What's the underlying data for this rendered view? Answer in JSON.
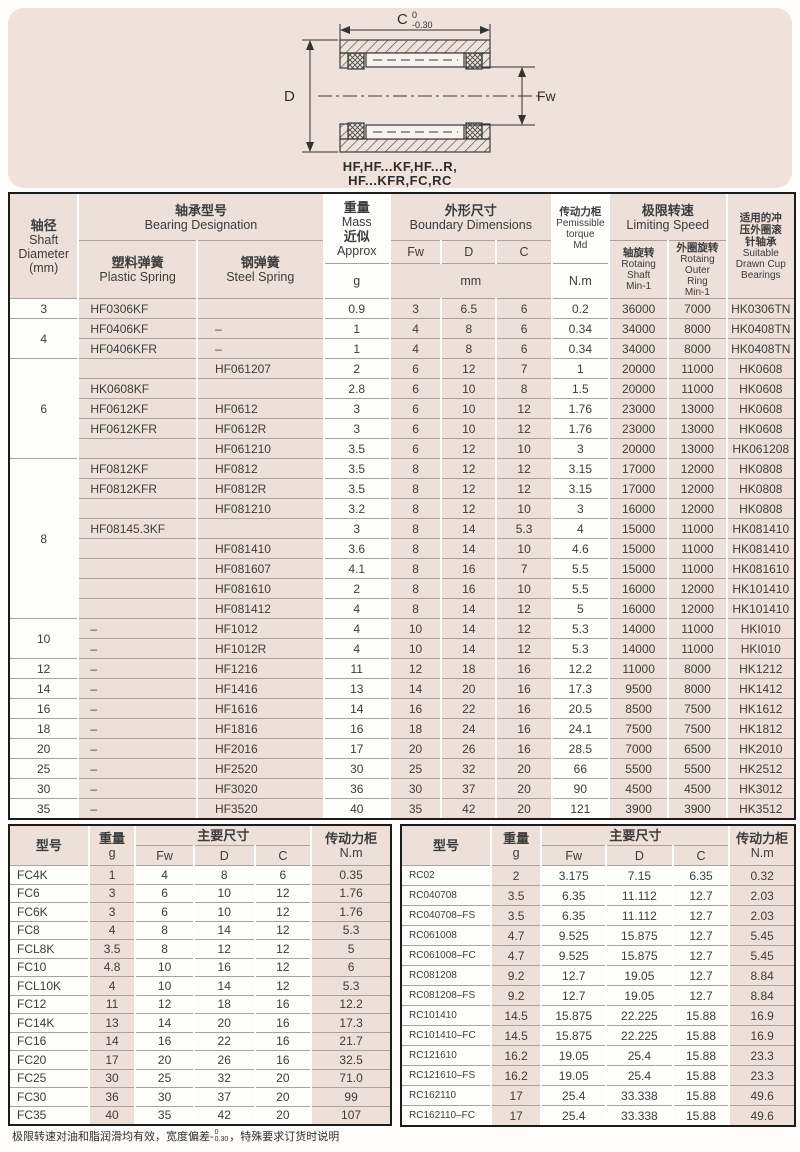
{
  "colors": {
    "panel_pink": "#eee2db",
    "cell_pink": "#ece0d9",
    "grid_line": "#aba29d",
    "outer_border": "#1c1c1c"
  },
  "diagram": {
    "dim_c_label": "C",
    "dim_c_tol_upper": "0",
    "dim_c_tol_lower": "-0.30",
    "dim_d_label": "D",
    "dim_fw_label": "Fw",
    "caption_line1": "HF,HF...KF,HF...R,",
    "caption_line2": "HF...KFR,FC,RC"
  },
  "main_table": {
    "header": {
      "shaft_cn": "轴径",
      "shaft_en1": "Shaft",
      "shaft_en2": "Diameter",
      "shaft_unit": "(mm)",
      "designation_cn": "轴承型号",
      "designation_en": "Bearing Designation",
      "plastic_cn": "塑料弹簧",
      "plastic_en": "Plastic Spring",
      "steel_cn": "钢弹簧",
      "steel_en": "Steel Spring",
      "mass_cn": "重量",
      "mass_en": "Mass",
      "mass_cn2": "近似",
      "mass_en2": "Approx",
      "mass_unit": "g",
      "bd_cn": "外形尺寸",
      "bd_en": "Boundary Dimensions",
      "col_fw": "Fw",
      "col_d": "D",
      "col_c": "C",
      "bd_unit": "mm",
      "torque_cn": "传动力柜",
      "torque_en1": "Pemissible",
      "torque_en2": "torque",
      "torque_en3": "Md",
      "torque_unit": "N.m",
      "speed_cn": "极限转速",
      "speed_en": "Limiting Speed",
      "ns_cn": "轴旋转",
      "ns_en1": "Rotaing",
      "ns_en2": "Shaft",
      "ns_en3": "Min-1",
      "nr_cn": "外圈旋转",
      "nr_en1": "Rotaing",
      "nr_en2": "Outer",
      "nr_en3": "Ring",
      "nr_en4": "Min-1",
      "suit_cn1": "适用的冲",
      "suit_cn2": "压外圈滚",
      "suit_cn3": "针轴承",
      "suit_en1": "Suitable",
      "suit_en2": "Drawn Cup",
      "suit_en3": "Bearings"
    },
    "rows": [
      {
        "shaft": "3",
        "span": 1,
        "plastic": "HF0306KF",
        "steel": "",
        "mass": "0.9",
        "fw": "3",
        "d": "6.5",
        "c": "6",
        "md": "0.2",
        "ns": "36000",
        "nr": "7000",
        "hk": "HK0306TN"
      },
      {
        "shaft": "4",
        "span": 2,
        "plastic": "HF0406KF",
        "steel": "–",
        "mass": "1",
        "fw": "4",
        "d": "8",
        "c": "6",
        "md": "0.34",
        "ns": "34000",
        "nr": "8000",
        "hk": "HK0408TN"
      },
      {
        "plastic": "HF0406KFR",
        "steel": "–",
        "mass": "1",
        "fw": "4",
        "d": "8",
        "c": "6",
        "md": "0.34",
        "ns": "34000",
        "nr": "8000",
        "hk": "HK0408TN"
      },
      {
        "shaft": "6",
        "span": 5,
        "plastic": "",
        "steel": "HF061207",
        "mass": "2",
        "fw": "6",
        "d": "12",
        "c": "7",
        "md": "1",
        "ns": "20000",
        "nr": "11000",
        "hk": "HK0608"
      },
      {
        "plastic": "HK0608KF",
        "steel": "",
        "mass": "2.8",
        "fw": "6",
        "d": "10",
        "c": "8",
        "md": "1.5",
        "ns": "20000",
        "nr": "11000",
        "hk": "HK0608"
      },
      {
        "plastic": "HF0612KF",
        "steel": "HF0612",
        "mass": "3",
        "fw": "6",
        "d": "10",
        "c": "12",
        "md": "1.76",
        "ns": "23000",
        "nr": "13000",
        "hk": "HK0608"
      },
      {
        "plastic": "HF0612KFR",
        "steel": "HF0612R",
        "mass": "3",
        "fw": "6",
        "d": "10",
        "c": "12",
        "md": "1.76",
        "ns": "23000",
        "nr": "13000",
        "hk": "HK0608"
      },
      {
        "plastic": "",
        "steel": "HF061210",
        "mass": "3.5",
        "fw": "6",
        "d": "12",
        "c": "10",
        "md": "3",
        "ns": "20000",
        "nr": "13000",
        "hk": "HK061208"
      },
      {
        "shaft": "8",
        "span": 8,
        "plastic": "HF0812KF",
        "steel": "HF0812",
        "mass": "3.5",
        "fw": "8",
        "d": "12",
        "c": "12",
        "md": "3.15",
        "ns": "17000",
        "nr": "12000",
        "hk": "HK0808"
      },
      {
        "plastic": "HF0812KFR",
        "steel": "HF0812R",
        "mass": "3.5",
        "fw": "8",
        "d": "12",
        "c": "12",
        "md": "3.15",
        "ns": "17000",
        "nr": "12000",
        "hk": "HK0808"
      },
      {
        "plastic": "",
        "steel": "HF081210",
        "mass": "3.2",
        "fw": "8",
        "d": "12",
        "c": "10",
        "md": "3",
        "ns": "16000",
        "nr": "12000",
        "hk": "HK0808"
      },
      {
        "plastic": "HF08145.3KF",
        "steel": "",
        "mass": "3",
        "fw": "8",
        "d": "14",
        "c": "5.3",
        "md": "4",
        "ns": "15000",
        "nr": "11000",
        "hk": "HK081410"
      },
      {
        "plastic": "",
        "steel": "HF081410",
        "mass": "3.6",
        "fw": "8",
        "d": "14",
        "c": "10",
        "md": "4.6",
        "ns": "15000",
        "nr": "11000",
        "hk": "HK081410"
      },
      {
        "plastic": "",
        "steel": "HF081607",
        "mass": "4.1",
        "fw": "8",
        "d": "16",
        "c": "7",
        "md": "5.5",
        "ns": "15000",
        "nr": "11000",
        "hk": "HK081610"
      },
      {
        "plastic": "",
        "steel": "HF081610",
        "mass": "2",
        "fw": "8",
        "d": "16",
        "c": "10",
        "md": "5.5",
        "ns": "16000",
        "nr": "12000",
        "hk": "HK101410"
      },
      {
        "plastic": "",
        "steel": "HF081412",
        "mass": "4",
        "fw": "8",
        "d": "14",
        "c": "12",
        "md": "5",
        "ns": "16000",
        "nr": "12000",
        "hk": "HK101410"
      },
      {
        "shaft": "10",
        "span": 2,
        "plastic": "–",
        "steel": "HF1012",
        "mass": "4",
        "fw": "10",
        "d": "14",
        "c": "12",
        "md": "5.3",
        "ns": "14000",
        "nr": "11000",
        "hk": "HKI010"
      },
      {
        "plastic": "–",
        "steel": "HF1012R",
        "mass": "4",
        "fw": "10",
        "d": "14",
        "c": "12",
        "md": "5.3",
        "ns": "14000",
        "nr": "11000",
        "hk": "HKI010"
      },
      {
        "shaft": "12",
        "span": 1,
        "plastic": "–",
        "steel": "HF1216",
        "mass": "11",
        "fw": "12",
        "d": "18",
        "c": "16",
        "md": "12.2",
        "ns": "11000",
        "nr": "8000",
        "hk": "HK1212"
      },
      {
        "shaft": "14",
        "span": 1,
        "plastic": "–",
        "steel": "HF1416",
        "mass": "13",
        "fw": "14",
        "d": "20",
        "c": "16",
        "md": "17.3",
        "ns": "9500",
        "nr": "8000",
        "hk": "HK1412"
      },
      {
        "shaft": "16",
        "span": 1,
        "plastic": "–",
        "steel": "HF1616",
        "mass": "14",
        "fw": "16",
        "d": "22",
        "c": "16",
        "md": "20.5",
        "ns": "8500",
        "nr": "7500",
        "hk": "HK1612"
      },
      {
        "shaft": "18",
        "span": 1,
        "plastic": "–",
        "steel": "HF1816",
        "mass": "16",
        "fw": "18",
        "d": "24",
        "c": "16",
        "md": "24.1",
        "ns": "7500",
        "nr": "7500",
        "hk": "HK1812"
      },
      {
        "shaft": "20",
        "span": 1,
        "plastic": "–",
        "steel": "HF2016",
        "mass": "17",
        "fw": "20",
        "d": "26",
        "c": "16",
        "md": "28.5",
        "ns": "7000",
        "nr": "6500",
        "hk": "HK2010"
      },
      {
        "shaft": "25",
        "span": 1,
        "plastic": "–",
        "steel": "HF2520",
        "mass": "30",
        "fw": "25",
        "d": "32",
        "c": "20",
        "md": "66",
        "ns": "5500",
        "nr": "5500",
        "hk": "HK2512"
      },
      {
        "shaft": "30",
        "span": 1,
        "plastic": "–",
        "steel": "HF3020",
        "mass": "36",
        "fw": "30",
        "d": "37",
        "c": "20",
        "md": "90",
        "ns": "4500",
        "nr": "4500",
        "hk": "HK3012"
      },
      {
        "shaft": "35",
        "span": 1,
        "plastic": "–",
        "steel": "HF3520",
        "mass": "40",
        "fw": "35",
        "d": "42",
        "c": "20",
        "md": "121",
        "ns": "3900",
        "nr": "3900",
        "hk": "HK3512"
      }
    ]
  },
  "fc_table": {
    "header": {
      "model": "型号",
      "weight_cn": "重量",
      "weight_unit": "g",
      "dims": "主要尺寸",
      "fw": "Fw",
      "d": "D",
      "c": "C",
      "torque_cn": "传动力柜",
      "torque_unit": "N.m"
    },
    "rows": [
      {
        "model": "FC4K",
        "g": "1",
        "fw": "4",
        "d": "8",
        "c": "6",
        "nm": "0.35"
      },
      {
        "model": "FC6",
        "g": "3",
        "fw": "6",
        "d": "10",
        "c": "12",
        "nm": "1.76"
      },
      {
        "model": "FC6K",
        "g": "3",
        "fw": "6",
        "d": "10",
        "c": "12",
        "nm": "1.76"
      },
      {
        "model": "FC8",
        "g": "4",
        "fw": "8",
        "d": "14",
        "c": "12",
        "nm": "5.3"
      },
      {
        "model": "FCL8K",
        "g": "3.5",
        "fw": "8",
        "d": "12",
        "c": "12",
        "nm": "5"
      },
      {
        "model": "FC10",
        "g": "4.8",
        "fw": "10",
        "d": "16",
        "c": "12",
        "nm": "6"
      },
      {
        "model": "FCL10K",
        "g": "4",
        "fw": "10",
        "d": "14",
        "c": "12",
        "nm": "5.3"
      },
      {
        "model": "FC12",
        "g": "11",
        "fw": "12",
        "d": "18",
        "c": "16",
        "nm": "12.2"
      },
      {
        "model": "FC14K",
        "g": "13",
        "fw": "14",
        "d": "20",
        "c": "16",
        "nm": "17.3"
      },
      {
        "model": "FC16",
        "g": "14",
        "fw": "16",
        "d": "22",
        "c": "16",
        "nm": "21.7"
      },
      {
        "model": "FC20",
        "g": "17",
        "fw": "20",
        "d": "26",
        "c": "16",
        "nm": "32.5"
      },
      {
        "model": "FC25",
        "g": "30",
        "fw": "25",
        "d": "32",
        "c": "20",
        "nm": "71.0"
      },
      {
        "model": "FC30",
        "g": "36",
        "fw": "30",
        "d": "37",
        "c": "20",
        "nm": "99"
      },
      {
        "model": "FC35",
        "g": "40",
        "fw": "35",
        "d": "42",
        "c": "20",
        "nm": "107"
      }
    ]
  },
  "rc_table": {
    "header": {
      "model": "型号",
      "weight_cn": "重量",
      "weight_unit": "g",
      "dims": "主要尺寸",
      "fw": "Fw",
      "d": "D",
      "c": "C",
      "torque_cn": "传动力柜",
      "torque_unit": "N.m"
    },
    "rows": [
      {
        "model": "RC02",
        "g": "2",
        "fw": "3.175",
        "d": "7.15",
        "c": "6.35",
        "nm": "0.32"
      },
      {
        "model": "RC040708",
        "g": "3.5",
        "fw": "6.35",
        "d": "11.112",
        "c": "12.7",
        "nm": "2.03"
      },
      {
        "model": "RC040708–FS",
        "g": "3.5",
        "fw": "6.35",
        "d": "11.112",
        "c": "12.7",
        "nm": "2.03"
      },
      {
        "model": "RC061008",
        "g": "4.7",
        "fw": "9.525",
        "d": "15.875",
        "c": "12.7",
        "nm": "5.45"
      },
      {
        "model": "RC061008–FC",
        "g": "4.7",
        "fw": "9.525",
        "d": "15.875",
        "c": "12.7",
        "nm": "5.45"
      },
      {
        "model": "RC081208",
        "g": "9.2",
        "fw": "12.7",
        "d": "19.05",
        "c": "12.7",
        "nm": "8.84"
      },
      {
        "model": "RC081208–FS",
        "g": "9.2",
        "fw": "12.7",
        "d": "19.05",
        "c": "12.7",
        "nm": "8.84"
      },
      {
        "model": "RC101410",
        "g": "14.5",
        "fw": "15.875",
        "d": "22.225",
        "c": "15.88",
        "nm": "16.9"
      },
      {
        "model": "RC101410–FC",
        "g": "14.5",
        "fw": "15.875",
        "d": "22.225",
        "c": "15.88",
        "nm": "16.9"
      },
      {
        "model": "RC121610",
        "g": "16.2",
        "fw": "19.05",
        "d": "25.4",
        "c": "15.88",
        "nm": "23.3"
      },
      {
        "model": "RC121610–FS",
        "g": "16.2",
        "fw": "19.05",
        "d": "25.4",
        "c": "15.88",
        "nm": "23.3"
      },
      {
        "model": "RC162110",
        "g": "17",
        "fw": "25.4",
        "d": "33.338",
        "c": "15.88",
        "nm": "49.6"
      },
      {
        "model": "RC162110–FC",
        "g": "17",
        "fw": "25.4",
        "d": "33.338",
        "c": "15.88",
        "nm": "49.6"
      }
    ]
  },
  "footnote": {
    "prefix": "极限转速对油和脂润滑均有效，宽度偏差-",
    "tol_upper": "0",
    "tol_lower": "0.30",
    "suffix": "，特殊要求订货时说明"
  }
}
